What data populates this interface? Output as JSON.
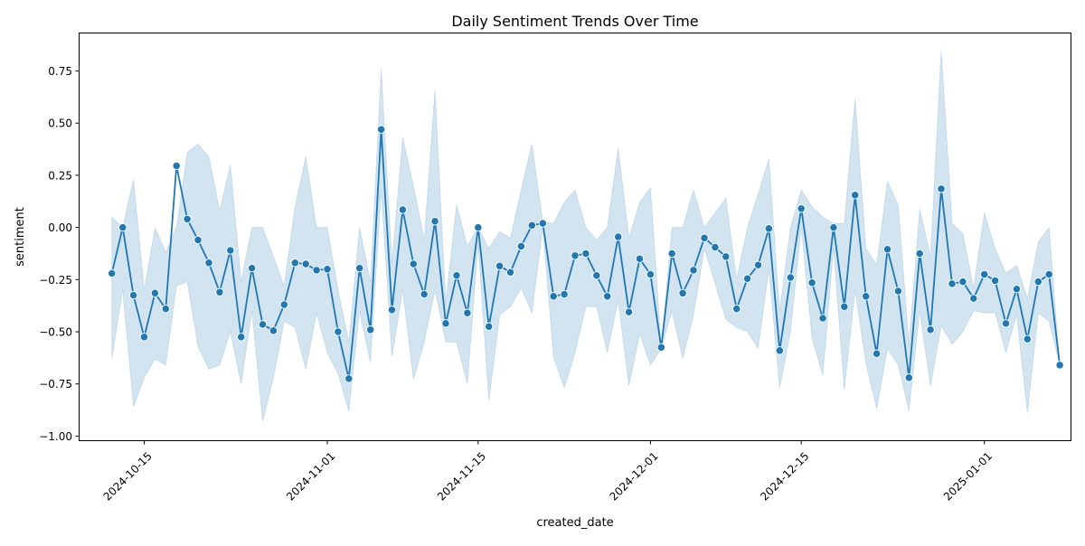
{
  "chart_data": {
    "type": "line",
    "title": "Daily Sentiment Trends Over Time",
    "xlabel": "created_date",
    "ylabel": "sentiment",
    "x_range": [
      "2024-10-09",
      "2025-01-09"
    ],
    "ylim": [
      -1.02,
      0.93
    ],
    "grid": false,
    "legend": "none",
    "x_ticks": [
      "2024-10-15",
      "2024-11-01",
      "2024-11-15",
      "2024-12-01",
      "2024-12-15",
      "2025-01-01"
    ],
    "y_ticks": [
      "0.75",
      "0.50",
      "0.25",
      "0.00",
      "−0.25",
      "−0.50",
      "−0.75",
      "−1.00"
    ],
    "y_tick_values": [
      0.75,
      0.5,
      0.25,
      0.0,
      -0.25,
      -0.5,
      -0.75,
      -1.0
    ],
    "line_color": "#1f77b4",
    "band_color": "#1f77b4",
    "marker_edge_color": "#ffffff",
    "series": [
      {
        "x": [
          "2024-10-12",
          "2024-10-13",
          "2024-10-14",
          "2024-10-15",
          "2024-10-16",
          "2024-10-17",
          "2024-10-18",
          "2024-10-19",
          "2024-10-20",
          "2024-10-21",
          "2024-10-22",
          "2024-10-23",
          "2024-10-24",
          "2024-10-25",
          "2024-10-26",
          "2024-10-27",
          "2024-10-28",
          "2024-10-29",
          "2024-10-30",
          "2024-10-31",
          "2024-11-01",
          "2024-11-02",
          "2024-11-03",
          "2024-11-04",
          "2024-11-05",
          "2024-11-06",
          "2024-11-07",
          "2024-11-08",
          "2024-11-09",
          "2024-11-10",
          "2024-11-11",
          "2024-11-12",
          "2024-11-13",
          "2024-11-14",
          "2024-11-15",
          "2024-11-16",
          "2024-11-17",
          "2024-11-18",
          "2024-11-19",
          "2024-11-20",
          "2024-11-21",
          "2024-11-22",
          "2024-11-23",
          "2024-11-24",
          "2024-11-25",
          "2024-11-26",
          "2024-11-27",
          "2024-11-28",
          "2024-11-29",
          "2024-11-30",
          "2024-12-01",
          "2024-12-02",
          "2024-12-03",
          "2024-12-04",
          "2024-12-05",
          "2024-12-06",
          "2024-12-07",
          "2024-12-08",
          "2024-12-09",
          "2024-12-10",
          "2024-12-11",
          "2024-12-12",
          "2024-12-13",
          "2024-12-14",
          "2024-12-15",
          "2024-12-16",
          "2024-12-17",
          "2024-12-18",
          "2024-12-19",
          "2024-12-20",
          "2024-12-21",
          "2024-12-22",
          "2024-12-23",
          "2024-12-24",
          "2024-12-25",
          "2024-12-26",
          "2024-12-27",
          "2024-12-28",
          "2024-12-29",
          "2024-12-30",
          "2024-12-31",
          "2025-01-01",
          "2025-01-02",
          "2025-01-03",
          "2025-01-04",
          "2025-01-05",
          "2025-01-06",
          "2025-01-07",
          "2025-01-08"
        ],
        "y": [
          -0.22,
          0.0,
          -0.325,
          -0.525,
          -0.315,
          -0.39,
          0.295,
          0.04,
          -0.06,
          -0.17,
          -0.31,
          -0.11,
          -0.525,
          -0.195,
          -0.465,
          -0.495,
          -0.37,
          -0.17,
          -0.175,
          -0.205,
          -0.2,
          -0.5,
          -0.725,
          -0.195,
          -0.49,
          0.47,
          -0.395,
          0.085,
          -0.175,
          -0.32,
          0.03,
          -0.46,
          -0.23,
          -0.41,
          0.0,
          -0.475,
          -0.185,
          -0.215,
          -0.09,
          0.01,
          0.02,
          -0.33,
          -0.32,
          -0.135,
          -0.125,
          -0.23,
          -0.33,
          -0.045,
          -0.405,
          -0.15,
          -0.225,
          -0.575,
          -0.125,
          -0.315,
          -0.205,
          -0.05,
          -0.095,
          -0.14,
          -0.39,
          -0.245,
          -0.18,
          -0.005,
          -0.59,
          -0.24,
          0.09,
          -0.265,
          -0.435,
          0.0,
          -0.38,
          0.155,
          -0.33,
          -0.605,
          -0.105,
          -0.305,
          -0.72,
          -0.125,
          -0.49,
          0.185,
          -0.27,
          -0.26,
          -0.34,
          -0.225,
          -0.255,
          -0.46,
          -0.295,
          -0.535,
          -0.26,
          -0.225,
          -0.66
        ],
        "ci_low": [
          -0.63,
          -0.3,
          -0.86,
          -0.72,
          -0.63,
          -0.66,
          -0.28,
          -0.26,
          -0.57,
          -0.68,
          -0.66,
          -0.5,
          -0.75,
          -0.4,
          -0.93,
          -0.72,
          -0.45,
          -0.48,
          -0.68,
          -0.41,
          -0.6,
          -0.7,
          -0.88,
          -0.4,
          -0.65,
          0.18,
          -0.62,
          -0.3,
          -0.73,
          -0.55,
          -0.3,
          -0.55,
          -0.55,
          -0.75,
          -0.08,
          -0.83,
          -0.42,
          -0.38,
          -0.29,
          -0.41,
          0.0,
          -0.62,
          -0.77,
          -0.6,
          -0.38,
          -0.38,
          -0.6,
          -0.35,
          -0.76,
          -0.51,
          -0.66,
          -0.58,
          -0.4,
          -0.63,
          -0.42,
          -0.1,
          -0.27,
          -0.44,
          -0.48,
          -0.5,
          -0.58,
          -0.2,
          -0.77,
          -0.5,
          0.0,
          -0.53,
          -0.71,
          -0.1,
          -0.78,
          -0.3,
          -0.65,
          -0.87,
          -0.58,
          -0.66,
          -0.88,
          -0.4,
          -0.76,
          -0.47,
          -0.56,
          -0.5,
          -0.4,
          -0.41,
          -0.41,
          -0.6,
          -0.42,
          -0.89,
          -0.41,
          -0.45,
          -0.66
        ],
        "ci_high": [
          0.05,
          0.0,
          0.23,
          -0.3,
          0.0,
          -0.12,
          0.0,
          0.36,
          0.4,
          0.34,
          0.08,
          0.3,
          -0.26,
          0.0,
          0.0,
          -0.14,
          -0.28,
          0.1,
          0.34,
          0.0,
          0.0,
          -0.3,
          -0.55,
          0.0,
          -0.26,
          0.76,
          -0.17,
          0.43,
          0.2,
          -0.06,
          0.66,
          -0.36,
          0.11,
          -0.09,
          0.0,
          -0.1,
          -0.02,
          -0.05,
          0.18,
          0.4,
          0.03,
          0.02,
          0.12,
          0.18,
          0.0,
          -0.06,
          0.0,
          0.38,
          -0.05,
          0.12,
          0.19,
          -0.57,
          0.0,
          0.0,
          0.18,
          0.0,
          0.07,
          0.14,
          -0.25,
          0.0,
          0.16,
          0.33,
          -0.4,
          0.0,
          0.18,
          0.1,
          0.05,
          0.02,
          0.02,
          0.62,
          -0.1,
          -0.18,
          0.22,
          0.11,
          -0.56,
          0.09,
          -0.14,
          0.85,
          0.02,
          -0.03,
          -0.29,
          0.07,
          -0.1,
          -0.22,
          -0.18,
          -0.34,
          -0.07,
          0.0,
          -0.66
        ]
      }
    ]
  }
}
